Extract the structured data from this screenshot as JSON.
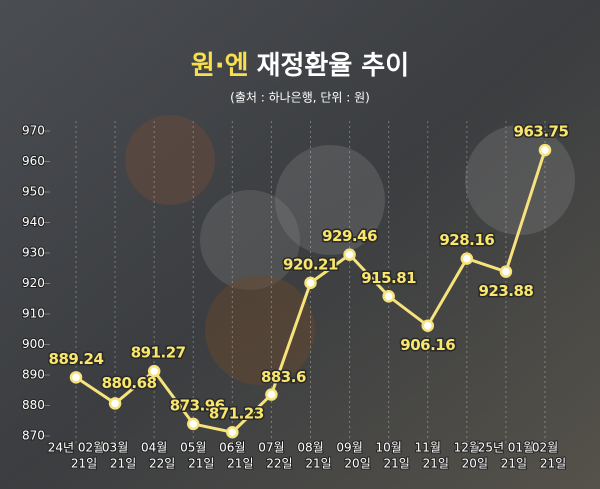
{
  "chart_data": {
    "type": "line",
    "title": [
      "원·엔",
      "재정환율 추이"
    ],
    "subtitle": "(출처 : 하나은행, 단위 : 원)",
    "categories": [
      [
        "24년 02월",
        "21일"
      ],
      [
        "03월",
        "21일"
      ],
      [
        "04월",
        "22일"
      ],
      [
        "05월",
        "21일"
      ],
      [
        "06월",
        "21일"
      ],
      [
        "07월",
        "22일"
      ],
      [
        "08월",
        "21일"
      ],
      [
        "09월",
        "20일"
      ],
      [
        "10월",
        "21일"
      ],
      [
        "11월",
        "21일"
      ],
      [
        "12월",
        "20일"
      ],
      [
        "25년 01월",
        "21일"
      ],
      [
        "02월",
        "21일"
      ]
    ],
    "values": [
      889.24,
      880.68,
      891.27,
      873.96,
      871.23,
      883.6,
      920.21,
      929.46,
      915.81,
      906.16,
      928.16,
      923.88,
      963.75
    ],
    "color": "#f6e37c",
    "ylim": [
      870,
      970
    ],
    "yticks": [
      870,
      880,
      890,
      900,
      910,
      920,
      930,
      940,
      950,
      960,
      970
    ],
    "grid": true
  }
}
